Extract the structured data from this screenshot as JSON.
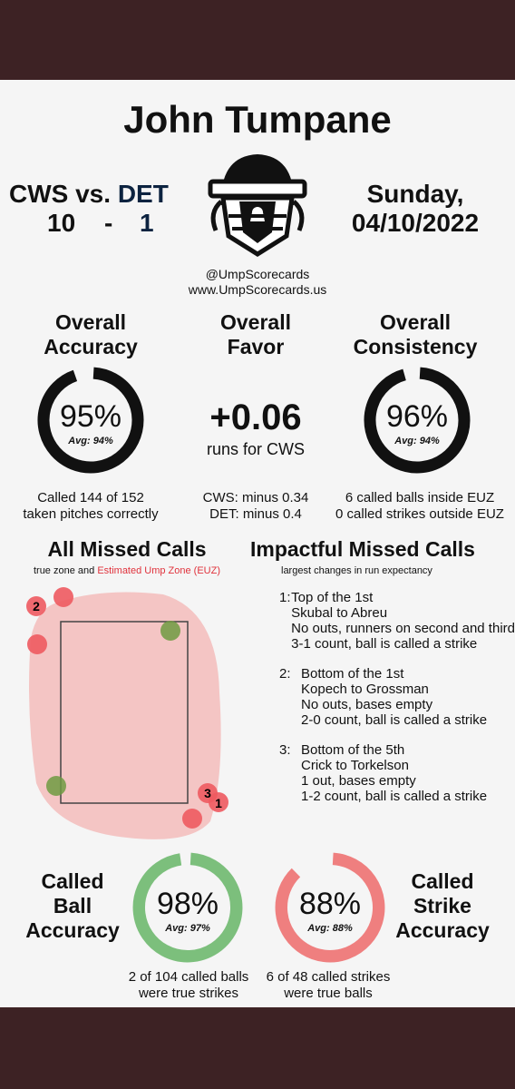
{
  "title": "John Tumpane",
  "game": {
    "away": "CWS",
    "vs": "vs.",
    "home": "DET",
    "away_score": "10",
    "dash": "-",
    "home_score": "1",
    "day": "Sunday,",
    "date": "04/10/2022"
  },
  "handle": "@UmpScorecards",
  "site": "www.UmpScorecards.us",
  "accuracy": {
    "heading1": "Overall",
    "heading2": "Accuracy",
    "value": "95%",
    "avg": "Avg: 94%",
    "fraction": 0.95,
    "note1": "Called 144 of 152",
    "note2": "taken pitches correctly"
  },
  "favor": {
    "heading1": "Overall",
    "heading2": "Favor",
    "value": "+0.06",
    "unit": "runs for CWS",
    "note1": "CWS: minus 0.34",
    "note2": "DET: minus 0.4"
  },
  "consistency": {
    "heading1": "Overall",
    "heading2": "Consistency",
    "value": "96%",
    "avg": "Avg: 94%",
    "fraction": 0.96,
    "note1": "6 called balls inside EUZ",
    "note2": "0 called strikes outside EUZ"
  },
  "missed": {
    "heading": "All Missed Calls",
    "sub_prefix": "true zone and ",
    "sub_red": "Estimated Ump Zone (EUZ)",
    "labels": [
      "2",
      "3",
      "1"
    ]
  },
  "impactful": {
    "heading": "Impactful Missed Calls",
    "sub": "largest changes in run expectancy",
    "items": [
      {
        "num": "1:",
        "lines": [
          "Top of the 1st",
          "Skubal to Abreu",
          "No outs, runners on second and third",
          "3-1 count, ball is called a strike"
        ]
      },
      {
        "num": "2:",
        "lines": [
          "Bottom of the 1st",
          "Kopech to Grossman",
          "No outs, bases empty",
          "2-0 count, ball is called a strike"
        ]
      },
      {
        "num": "3:",
        "lines": [
          "Bottom of the 5th",
          "Crick to Torkelson",
          "1 out, bases empty",
          "1-2 count, ball is called a strike"
        ]
      }
    ]
  },
  "ball_accuracy": {
    "l1": "Called",
    "l2": "Ball",
    "l3": "Accuracy",
    "value": "98%",
    "avg": "Avg: 97%",
    "fraction": 0.98,
    "note1": "2 of 104 called balls",
    "note2": "were true strikes",
    "color": "#7cbf7c"
  },
  "strike_accuracy": {
    "l1": "Called",
    "l2": "Strike",
    "l3": "Accuracy",
    "value": "88%",
    "avg": "Avg: 88%",
    "fraction": 0.88,
    "note1": "6 of 48 called strikes",
    "note2": "were true balls",
    "color": "#ef7f7f"
  },
  "colors": {
    "frame": "#3d2224",
    "miss_red": "#ee5a60",
    "miss_green": "#6e9a42",
    "euz": "#f4c5c4"
  }
}
